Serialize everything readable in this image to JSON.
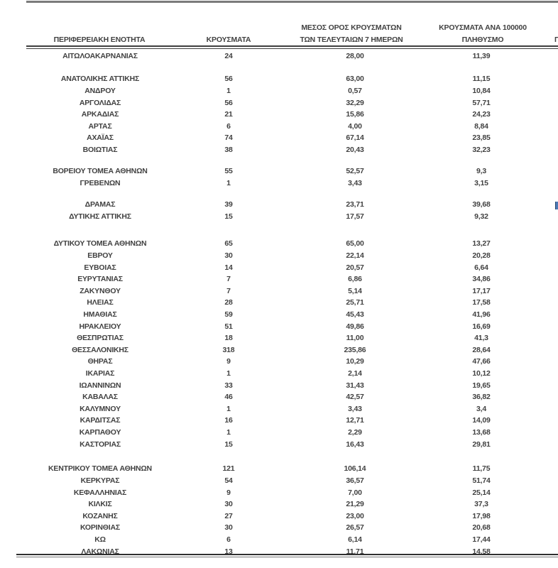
{
  "table": {
    "headers": {
      "col1": "ΠΕΡΙΦΕΡΕΙΑΚΗ ΕΝΟΤΗΤΑ",
      "col2": "ΚΡΟΥΣΜΑΤΑ",
      "col3_line1": "ΜΕΣΟΣ ΟΡΟΣ ΚΡΟΥΣΜΑΤΩΝ",
      "col3_line2": "ΤΩΝ ΤΕΛΕΥΤΑΙΩΝ 7 ΗΜΕΡΩΝ",
      "col4_line1": "ΚΡΟΥΣΜΑΤΑ ΑΝΑ 100000",
      "col4_line2": "ΠΛΗΘΥΣΜΟ",
      "col5_partial": "Π"
    },
    "sections": [
      {
        "rows": [
          [
            "ΑΙΤΩΛΟΑΚΑΡΝΑΝΙΑΣ",
            "24",
            "28,00",
            "11,39"
          ]
        ]
      },
      {
        "rows": [
          [
            "ΑΝΑΤΟΛΙΚΗΣ ΑΤΤΙΚΗΣ",
            "56",
            "63,00",
            "11,15"
          ],
          [
            "ΑΝΔΡΟΥ",
            "1",
            "0,57",
            "10,84"
          ],
          [
            "ΑΡΓΟΛΙΔΑΣ",
            "56",
            "32,29",
            "57,71"
          ],
          [
            "ΑΡΚΑΔΙΑΣ",
            "21",
            "15,86",
            "24,23"
          ],
          [
            "ΑΡΤΑΣ",
            "6",
            "4,00",
            "8,84"
          ],
          [
            "ΑΧΑΪΑΣ",
            "74",
            "67,14",
            "23,85"
          ],
          [
            "ΒΟΙΩΤΙΑΣ",
            "38",
            "20,43",
            "32,23"
          ]
        ]
      },
      {
        "rows": [
          [
            "ΒΟΡΕΙΟΥ ΤΟΜΕΑ ΑΘΗΝΩΝ",
            "55",
            "52,57",
            "9,3"
          ],
          [
            "ΓΡΕΒΕΝΩΝ",
            "1",
            "3,43",
            "3,15"
          ]
        ]
      },
      {
        "rows": [
          [
            "ΔΡΑΜΑΣ",
            "39",
            "23,71",
            "39,68"
          ],
          [
            "ΔΥΤΙΚΗΣ ΑΤΤΙΚΗΣ",
            "15",
            "17,57",
            "9,32"
          ]
        ]
      },
      {
        "rows": [
          [
            "ΔΥΤΙΚΟΥ ΤΟΜΕΑ ΑΘΗΝΩΝ",
            "65",
            "65,00",
            "13,27"
          ],
          [
            "ΕΒΡΟΥ",
            "30",
            "22,14",
            "20,28"
          ],
          [
            "ΕΥΒΟΙΑΣ",
            "14",
            "20,57",
            "6,64"
          ],
          [
            "ΕΥΡΥΤΑΝΙΑΣ",
            "7",
            "6,86",
            "34,86"
          ],
          [
            "ΖΑΚΥΝΘΟΥ",
            "7",
            "5,14",
            "17,17"
          ],
          [
            "ΗΛΕΙΑΣ",
            "28",
            "25,71",
            "17,58"
          ],
          [
            "ΗΜΑΘΙΑΣ",
            "59",
            "45,43",
            "41,96"
          ],
          [
            "ΗΡΑΚΛΕΙΟΥ",
            "51",
            "49,86",
            "16,69"
          ],
          [
            "ΘΕΣΠΡΩΤΙΑΣ",
            "18",
            "11,00",
            "41,3"
          ],
          [
            "ΘΕΣΣΑΛΟΝΙΚΗΣ",
            "318",
            "235,86",
            "28,64"
          ],
          [
            "ΘΗΡΑΣ",
            "9",
            "10,29",
            "47,66"
          ],
          [
            "ΙΚΑΡΙΑΣ",
            "1",
            "2,14",
            "10,12"
          ],
          [
            "ΙΩΑΝΝΙΝΩΝ",
            "33",
            "31,43",
            "19,65"
          ],
          [
            "ΚΑΒΑΛΑΣ",
            "46",
            "42,57",
            "36,82"
          ],
          [
            "ΚΑΛΥΜΝΟΥ",
            "1",
            "3,43",
            "3,4"
          ],
          [
            "ΚΑΡΔΙΤΣΑΣ",
            "16",
            "12,71",
            "14,09"
          ],
          [
            "ΚΑΡΠΑΘΟΥ",
            "1",
            "2,29",
            "13,68"
          ],
          [
            "ΚΑΣΤΟΡΙΑΣ",
            "15",
            "16,43",
            "29,81"
          ]
        ]
      },
      {
        "rows": [
          [
            "ΚΕΝΤΡΙΚΟΥ ΤΟΜΕΑ ΑΘΗΝΩΝ",
            "121",
            "106,14",
            "11,75"
          ],
          [
            "ΚΕΡΚΥΡΑΣ",
            "54",
            "36,57",
            "51,74"
          ],
          [
            "ΚΕΦΑΛΛΗΝΙΑΣ",
            "9",
            "7,00",
            "25,14"
          ],
          [
            "ΚΙΛΚΙΣ",
            "30",
            "21,29",
            "37,3"
          ],
          [
            "ΚΟΖΑΝΗΣ",
            "27",
            "23,00",
            "17,98"
          ],
          [
            "ΚΟΡΙΝΘΙΑΣ",
            "30",
            "26,57",
            "20,68"
          ],
          [
            "ΚΩ",
            "6",
            "6,14",
            "17,44"
          ],
          [
            "ΛΑΚΩΝΙΑΣ",
            "13",
            "11,71",
            "14,58"
          ]
        ]
      }
    ]
  },
  "colors": {
    "text": "#414141",
    "rule_top_gray": "#7b7b7b",
    "rule_dark": "#3f3f3f",
    "fragment_blue": "#4d79b5"
  }
}
